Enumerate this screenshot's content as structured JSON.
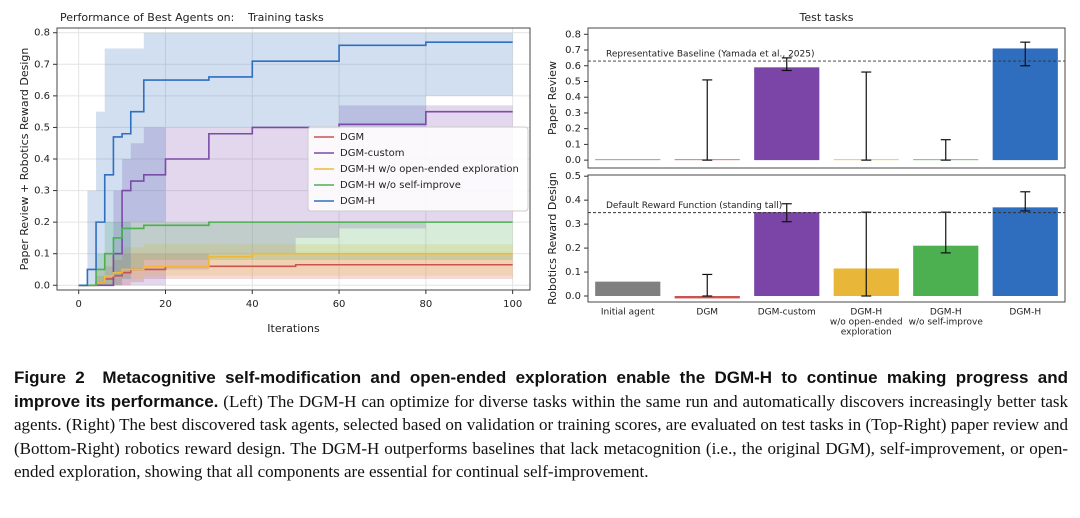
{
  "chart_data": [
    {
      "type": "line",
      "title": "Performance of Best Agents on:",
      "subtitle": "Training tasks",
      "xlabel": "Iterations",
      "ylabel": "Paper Review + Robotics Reward Design",
      "drawstyle": "steps-post",
      "grid": true,
      "legend": "center right",
      "xlim": [
        -5,
        104
      ],
      "ylim": [
        -0.015,
        0.815
      ],
      "xticks": [
        0,
        20,
        40,
        60,
        80,
        100
      ],
      "yticks": [
        {
          "value": 0,
          "label": "0.0"
        },
        0.1,
        0.2,
        0.3,
        0.4,
        0.5,
        0.6,
        0.7,
        0.8
      ],
      "x": [
        0,
        2,
        4,
        6,
        8,
        10,
        12,
        15,
        20,
        30,
        40,
        50,
        60,
        80,
        100
      ],
      "series": [
        {
          "name": "DGM",
          "color": "#c9534f",
          "values": [
            0,
            0,
            0.01,
            0.02,
            0.03,
            0.04,
            0.05,
            0.05,
            0.06,
            0.06,
            0.06,
            0.065,
            0.065,
            0.065,
            0.065
          ],
          "lower": [
            0,
            0,
            0,
            0,
            0,
            0,
            0.01,
            0.02,
            0.02,
            0.02,
            0.02,
            0.02,
            0.02,
            0.02,
            0.02
          ],
          "upper": [
            0,
            0,
            0.03,
            0.06,
            0.08,
            0.1,
            0.1,
            0.1,
            0.1,
            0.1,
            0.1,
            0.1,
            0.1,
            0.1,
            0.1
          ]
        },
        {
          "name": "DGM-custom",
          "color": "#7b4ba8",
          "values": [
            0,
            0,
            0,
            0,
            0.1,
            0.3,
            0.33,
            0.35,
            0.4,
            0.48,
            0.5,
            0.5,
            0.51,
            0.55,
            0.55
          ],
          "lower": [
            0,
            0,
            0,
            0,
            0,
            0,
            0,
            0,
            0.05,
            0.1,
            0.1,
            0.15,
            0.18,
            0.2,
            0.2
          ],
          "upper": [
            0,
            0,
            0,
            0,
            0.3,
            0.4,
            0.45,
            0.5,
            0.5,
            0.5,
            0.5,
            0.5,
            0.57,
            0.57,
            0.57
          ]
        },
        {
          "name": "DGM-H w/o open-ended exploration",
          "color": "#f0b93a",
          "values": [
            0,
            0,
            0.01,
            0.03,
            0.04,
            0.05,
            0.05,
            0.06,
            0.06,
            0.09,
            0.1,
            0.1,
            0.1,
            0.1,
            0.1
          ],
          "lower": [
            0,
            0,
            0,
            0,
            0,
            0.02,
            0.02,
            0.03,
            0.03,
            0.03,
            0.03,
            0.03,
            0.03,
            0.03,
            0.03
          ],
          "upper": [
            0,
            0,
            0.05,
            0.1,
            0.1,
            0.12,
            0.12,
            0.13,
            0.13,
            0.13,
            0.13,
            0.13,
            0.13,
            0.13,
            0.13
          ]
        },
        {
          "name": "DGM-H w/o self-improve",
          "color": "#4caf50",
          "values": [
            0,
            0,
            0.05,
            0.1,
            0.15,
            0.18,
            0.18,
            0.19,
            0.19,
            0.2,
            0.2,
            0.2,
            0.2,
            0.2,
            0.2
          ],
          "lower": [
            0,
            0,
            0,
            0,
            0.03,
            0.05,
            0.05,
            0.08,
            0.08,
            0.08,
            0.08,
            0.08,
            0.08,
            0.08,
            0.08
          ],
          "upper": [
            0,
            0,
            0.1,
            0.2,
            0.2,
            0.2,
            0.2,
            0.2,
            0.2,
            0.2,
            0.2,
            0.2,
            0.2,
            0.2,
            0.2
          ]
        },
        {
          "name": "DGM-H",
          "color": "#2f6fbf",
          "values": [
            0,
            0.05,
            0.2,
            0.35,
            0.47,
            0.48,
            0.55,
            0.65,
            0.65,
            0.66,
            0.71,
            0.71,
            0.76,
            0.77,
            0.77
          ],
          "lower": [
            0,
            0,
            0,
            0,
            0,
            0.02,
            0.2,
            0.2,
            0.5,
            0.5,
            0.5,
            0.5,
            0.5,
            0.6,
            0.63
          ],
          "upper": [
            0,
            0.3,
            0.55,
            0.75,
            0.75,
            0.75,
            0.75,
            0.8,
            0.8,
            0.8,
            0.8,
            0.8,
            0.8,
            0.8,
            0.8
          ]
        }
      ]
    },
    {
      "type": "bar",
      "title": "Test tasks",
      "ylabel": "Paper Review",
      "grid": false,
      "ylim": [
        -0.05,
        0.84
      ],
      "yticks": [
        {
          "value": 0,
          "label": "0.0"
        },
        0.1,
        0.2,
        0.3,
        0.4,
        0.5,
        0.6,
        0.7,
        0.8
      ],
      "colors": [
        "#808080",
        "#c9534f",
        "#7b45a8",
        "#e8b73a",
        "#4caf50",
        "#2f6dbe"
      ],
      "values": [
        0.005,
        0.005,
        0.59,
        0.005,
        0.005,
        0.71
      ],
      "lower": [
        null,
        0,
        0.57,
        0,
        0,
        0.6
      ],
      "upper": [
        null,
        0.51,
        0.65,
        0.56,
        0.13,
        0.75
      ],
      "hline": {
        "value": 0.63,
        "label": "Representative Baseline (Yamada et al., 2025)"
      }
    },
    {
      "type": "bar",
      "ylabel": "Robotics Reward Design",
      "grid": false,
      "ylim": [
        -0.025,
        0.505
      ],
      "yticks": [
        {
          "value": 0,
          "label": "0.0"
        },
        0.1,
        0.2,
        0.3,
        0.4,
        0.5
      ],
      "categories": [
        [
          "Initial agent"
        ],
        [
          "DGM"
        ],
        [
          "DGM-custom"
        ],
        [
          "DGM-H",
          "w/o open-ended",
          "exploration"
        ],
        [
          "DGM-H",
          "w/o self-improve"
        ],
        [
          "DGM-H"
        ]
      ],
      "colors": [
        "#808080",
        "#c9534f",
        "#7b45a8",
        "#e8b73a",
        "#4caf50",
        "#2f6dbe"
      ],
      "values": [
        0.06,
        -0.01,
        0.35,
        0.115,
        0.21,
        0.37
      ],
      "lower": [
        null,
        0,
        0.31,
        0,
        0.18,
        0.355
      ],
      "upper": [
        null,
        0.09,
        0.385,
        0.35,
        0.35,
        0.435
      ],
      "hline": {
        "value": 0.348,
        "label": "Default Reward Function (standing tall)"
      }
    }
  ],
  "caption": {
    "label": "Figure 2",
    "headline": "Metacognitive self-modification and open-ended exploration enable the DGM-H to continue making progress and improve its performance.",
    "text": "(Left) The DGM-H can optimize for diverse tasks within the same run and automatically discovers increasingly better task agents. (Right) The best discovered task agents, selected based on validation or training scores, are evaluated on test tasks in (Top-Right) paper review and (Bottom-Right) robotics reward design. The DGM-H outperforms baselines that lack metacognition (i.e., the original DGM), self-improvement, or open-ended exploration, showing that all components are essential for continual self-improvement."
  }
}
